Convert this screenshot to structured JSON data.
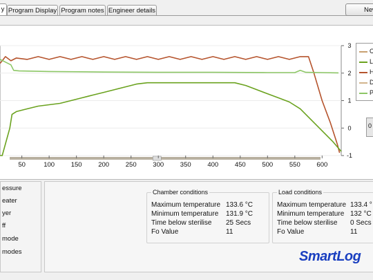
{
  "tabs": [
    {
      "label": "y",
      "active": true
    },
    {
      "label": "Program Display",
      "active": false
    },
    {
      "label": "Program notes",
      "active": false
    },
    {
      "label": "Engineer details",
      "active": false
    }
  ],
  "new_button": {
    "label": "New"
  },
  "chart_data": {
    "type": "line",
    "x_ticks": [
      50,
      100,
      150,
      200,
      250,
      300,
      350,
      400,
      450,
      500,
      550,
      600
    ],
    "xlim": [
      10,
      635
    ],
    "y_right_ticks": [
      "3",
      "2",
      "1",
      "0",
      "-1"
    ],
    "ylim": [
      -1,
      3
    ],
    "legend": [
      "C",
      "L",
      "H",
      "D",
      "P"
    ],
    "series": [
      {
        "name": "H",
        "color": "#b5532c",
        "points": [
          [
            10,
            2.35
          ],
          [
            14,
            2.45
          ],
          [
            20,
            2.6
          ],
          [
            30,
            2.45
          ],
          [
            40,
            2.55
          ],
          [
            60,
            2.5
          ],
          [
            80,
            2.6
          ],
          [
            100,
            2.5
          ],
          [
            120,
            2.6
          ],
          [
            140,
            2.5
          ],
          [
            160,
            2.6
          ],
          [
            180,
            2.5
          ],
          [
            200,
            2.6
          ],
          [
            220,
            2.5
          ],
          [
            240,
            2.6
          ],
          [
            260,
            2.5
          ],
          [
            280,
            2.6
          ],
          [
            300,
            2.5
          ],
          [
            320,
            2.6
          ],
          [
            340,
            2.5
          ],
          [
            360,
            2.6
          ],
          [
            380,
            2.5
          ],
          [
            400,
            2.6
          ],
          [
            420,
            2.5
          ],
          [
            440,
            2.6
          ],
          [
            460,
            2.5
          ],
          [
            480,
            2.6
          ],
          [
            500,
            2.5
          ],
          [
            520,
            2.6
          ],
          [
            540,
            2.5
          ],
          [
            560,
            2.6
          ],
          [
            575,
            2.6
          ],
          [
            585,
            2.0
          ],
          [
            600,
            1.0
          ],
          [
            615,
            0.2
          ],
          [
            628,
            -0.6
          ],
          [
            632,
            -0.9
          ]
        ]
      },
      {
        "name": "P",
        "color": "#8cc665",
        "points": [
          [
            10,
            2.5
          ],
          [
            20,
            2.4
          ],
          [
            30,
            2.3
          ],
          [
            35,
            2.1
          ],
          [
            45,
            2.08
          ],
          [
            100,
            2.06
          ],
          [
            200,
            2.04
          ],
          [
            300,
            2.03
          ],
          [
            400,
            2.03
          ],
          [
            500,
            2.02
          ],
          [
            550,
            2.02
          ],
          [
            560,
            2.1
          ],
          [
            570,
            2.03
          ],
          [
            600,
            2.02
          ],
          [
            630,
            2.01
          ]
        ]
      },
      {
        "name": "L",
        "color": "#6aa21e",
        "points": [
          [
            10,
            -1.0
          ],
          [
            14,
            -1.0
          ],
          [
            28,
            0.0
          ],
          [
            32,
            0.5
          ],
          [
            40,
            0.6
          ],
          [
            60,
            0.7
          ],
          [
            80,
            0.8
          ],
          [
            100,
            0.85
          ],
          [
            120,
            0.9
          ],
          [
            140,
            1.0
          ],
          [
            160,
            1.1
          ],
          [
            180,
            1.2
          ],
          [
            200,
            1.3
          ],
          [
            220,
            1.4
          ],
          [
            240,
            1.5
          ],
          [
            260,
            1.6
          ],
          [
            280,
            1.65
          ],
          [
            300,
            1.65
          ],
          [
            320,
            1.65
          ],
          [
            340,
            1.65
          ],
          [
            360,
            1.65
          ],
          [
            380,
            1.65
          ],
          [
            400,
            1.65
          ],
          [
            420,
            1.65
          ],
          [
            440,
            1.65
          ],
          [
            460,
            1.55
          ],
          [
            480,
            1.4
          ],
          [
            500,
            1.25
          ],
          [
            520,
            1.1
          ],
          [
            540,
            0.95
          ],
          [
            560,
            0.7
          ],
          [
            580,
            0.3
          ],
          [
            600,
            -0.1
          ],
          [
            620,
            -0.5
          ],
          [
            635,
            -0.85
          ]
        ]
      }
    ]
  },
  "checkboxes": [
    "essure",
    "eater",
    "yer",
    "ff",
    "mode",
    " modes"
  ],
  "chamber": {
    "title": "Chamber conditions",
    "rows": [
      {
        "label": "Maximum temperature",
        "value": "133.6 °C"
      },
      {
        "label": "Minimum temperature",
        "value": "131.9 °C"
      },
      {
        "label": "Time below sterilise",
        "value": "25 Secs"
      },
      {
        "label": "Fo Value",
        "value": "11"
      }
    ]
  },
  "load": {
    "title": "Load conditions",
    "rows": [
      {
        "label": "Maximum temperature",
        "value": "133.4 °"
      },
      {
        "label": "Minimum temperature",
        "value": "132 °C"
      },
      {
        "label": "Time below sterilise",
        "value": "0 Secs"
      },
      {
        "label": "Fo Value",
        "value": "11"
      }
    ]
  },
  "logo_text": "SmartLog",
  "scroll_button": "0"
}
